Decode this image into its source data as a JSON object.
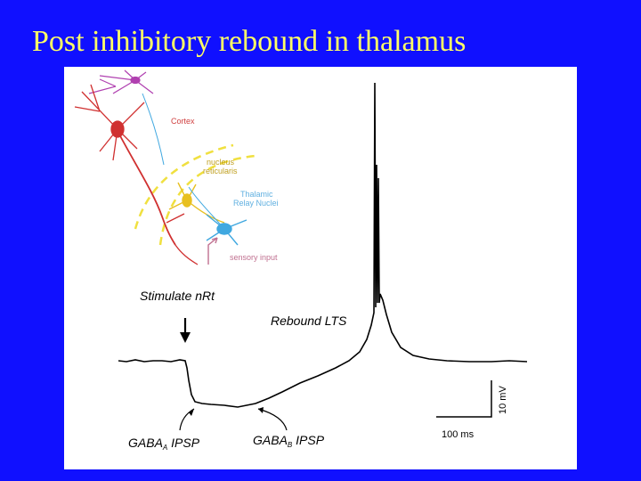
{
  "slide": {
    "title": "Post inhibitory rebound in thalamus"
  },
  "diagram": {
    "cortex_label": "Cortex",
    "nrt_label_line1": "nucleus",
    "nrt_label_line2": "reticularis",
    "relay_label_line1": "Thalamic",
    "relay_label_line2": "Relay Nuclei",
    "sensory_label": "sensory input"
  },
  "trace": {
    "stimulus_label": "Stimulate nRt",
    "rebound_label": "Rebound LTS",
    "gaba_a_main": "GABA",
    "gaba_a_sub": "A",
    "gaba_a_suffix": " IPSP",
    "gaba_b_main": "GABA",
    "gaba_b_sub": "B",
    "gaba_b_suffix": " IPSP",
    "scale_time": "100 ms",
    "scale_voltage": "10 mV"
  },
  "colors": {
    "background": "#1010ff",
    "title": "#ffff66",
    "cortex_neuron": "#d03030",
    "cortex_label": "#d04040",
    "nrt_neuron": "#e8c020",
    "relay_neuron": "#40a8e0",
    "pyramidal_top": "#b040b0"
  }
}
